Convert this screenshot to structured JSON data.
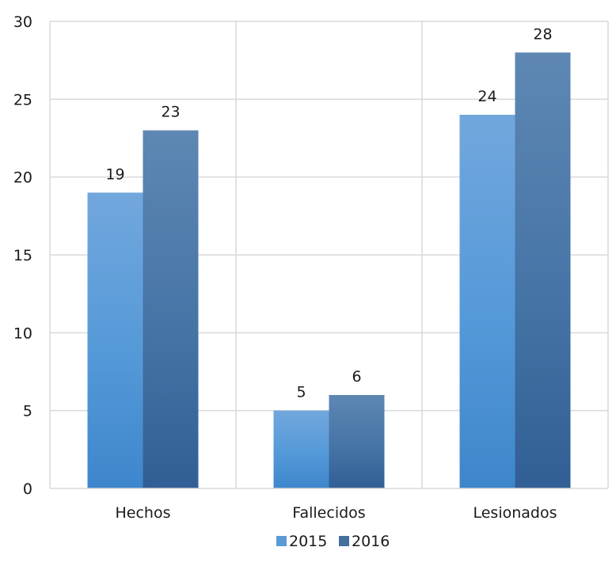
{
  "chart_data": {
    "type": "bar",
    "title": "",
    "xlabel": "",
    "ylabel": "",
    "categories": [
      "Hechos",
      "Fallecidos",
      "Lesionados"
    ],
    "series": [
      {
        "name": "2015",
        "values": [
          19,
          5,
          24
        ],
        "color": "#5B9BD5",
        "labels": [
          "19",
          "5",
          "24"
        ]
      },
      {
        "name": "2016",
        "values": [
          23,
          6,
          28
        ],
        "color": "#44709E",
        "labels": [
          "23",
          "6",
          "28"
        ]
      }
    ],
    "ylim": [
      0,
      30
    ],
    "yticks": [
      0,
      5,
      10,
      15,
      20,
      25,
      30
    ],
    "ytick_labels": [
      "0",
      "5",
      "10",
      "15",
      "20",
      "25",
      "30"
    ],
    "grid": true,
    "legend_position": "bottom"
  }
}
